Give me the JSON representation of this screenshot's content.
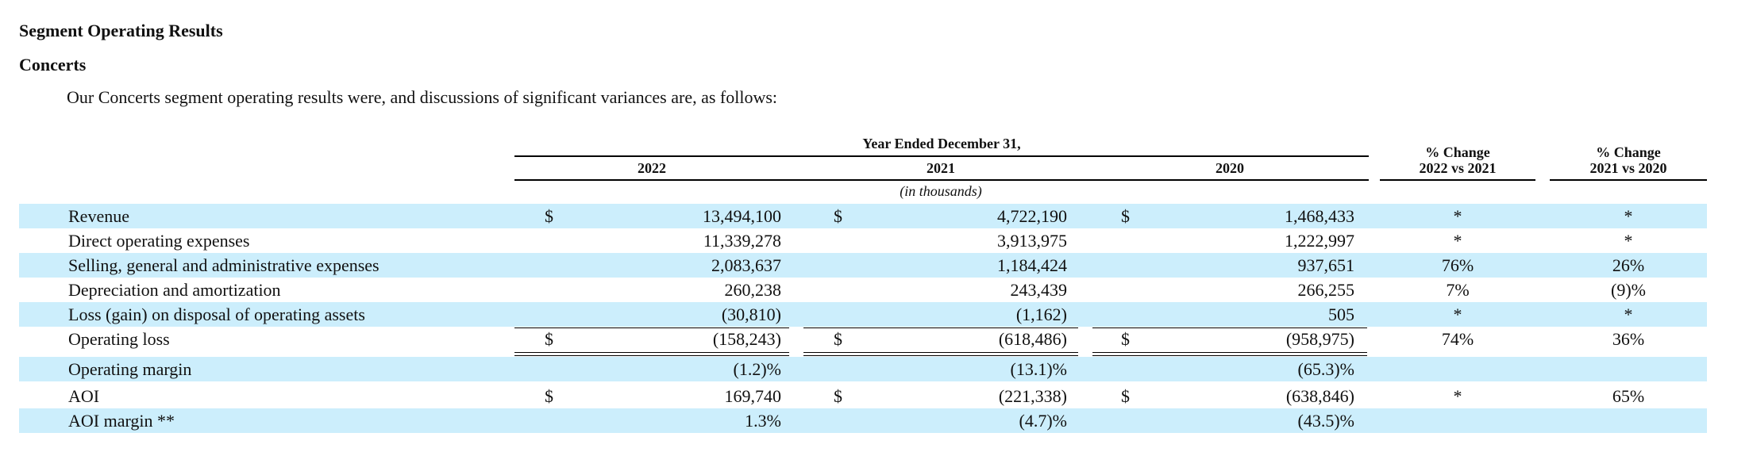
{
  "section_title": "Segment Operating Results",
  "subsection_title": "Concerts",
  "intro": "Our Concerts segment operating results were, and discussions of significant variances are, as follows:",
  "table": {
    "period_header": "Year Ended December 31,",
    "years": [
      "2022",
      "2021",
      "2020"
    ],
    "change_headers": [
      {
        "line1": "% Change",
        "line2": "2022 vs 2021"
      },
      {
        "line1": "% Change",
        "line2": "2021 vs 2020"
      }
    ],
    "units": "(in thousands)",
    "currency_symbol": "$",
    "rows": [
      {
        "label": "Revenue",
        "dollar": true,
        "values": [
          "13,494,100",
          "4,722,190",
          "1,468,433"
        ],
        "changes": [
          "*",
          "*"
        ],
        "shaded": true
      },
      {
        "label": "Direct operating expenses",
        "dollar": false,
        "values": [
          "11,339,278",
          "3,913,975",
          "1,222,997"
        ],
        "changes": [
          "*",
          "*"
        ],
        "shaded": false
      },
      {
        "label": "Selling, general and administrative expenses",
        "dollar": false,
        "values": [
          "2,083,637",
          "1,184,424",
          "937,651"
        ],
        "changes": [
          "76%",
          "26%"
        ],
        "shaded": true
      },
      {
        "label": "Depreciation and amortization",
        "dollar": false,
        "values": [
          "260,238",
          "243,439",
          "266,255"
        ],
        "changes": [
          "7%",
          "(9)%"
        ],
        "shaded": false
      },
      {
        "label": "Loss (gain) on disposal of operating assets",
        "dollar": false,
        "values": [
          "(30,810)",
          "(1,162)",
          "505"
        ],
        "changes": [
          "*",
          "*"
        ],
        "shaded": true
      },
      {
        "label": "Operating loss",
        "dollar": true,
        "values": [
          "(158,243)",
          "(618,486)",
          "(958,975)"
        ],
        "changes": [
          "74%",
          "36%"
        ],
        "shaded": false
      },
      {
        "label": "Operating margin",
        "dollar": false,
        "values": [
          "(1.2)%",
          "(13.1)%",
          "(65.3)%"
        ],
        "changes": [
          "",
          ""
        ],
        "shaded": true
      },
      {
        "label": "AOI",
        "dollar": true,
        "values": [
          "169,740",
          "(221,338)",
          "(638,846)"
        ],
        "changes": [
          "*",
          "65%"
        ],
        "shaded": false
      },
      {
        "label": "AOI margin **",
        "dollar": false,
        "values": [
          "1.3%",
          "(4.7)%",
          "(43.5)%"
        ],
        "changes": [
          "",
          ""
        ],
        "shaded": true
      }
    ]
  },
  "colors": {
    "row_shade": "#cceefc",
    "text": "#111111"
  }
}
